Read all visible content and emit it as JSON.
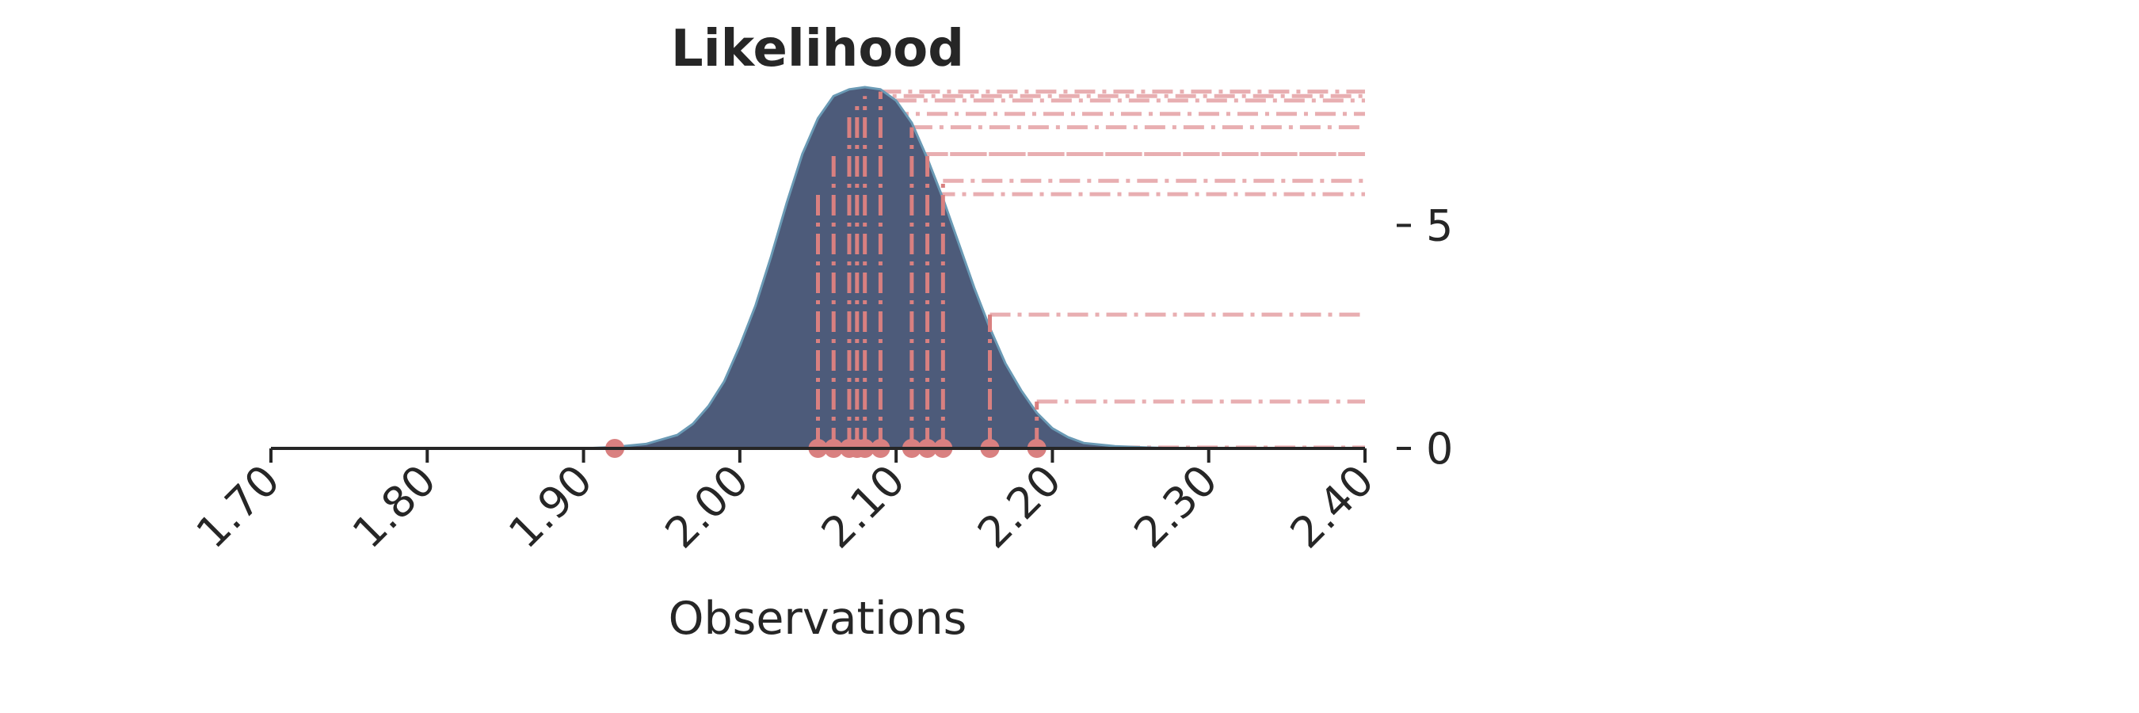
{
  "chart_data": {
    "type": "area",
    "title": "Likelihood",
    "xlabel": "Observations",
    "ylabel": "",
    "xlim": [
      1.7,
      2.4
    ],
    "ylim": [
      0,
      8.1
    ],
    "x_ticks": [
      1.7,
      1.8,
      1.9,
      2.0,
      2.1,
      2.2,
      2.3,
      2.4
    ],
    "x_tick_labels": [
      "1.70",
      "1.80",
      "1.90",
      "2.00",
      "2.10",
      "2.20",
      "2.30",
      "2.40"
    ],
    "y_ticks": [
      0,
      5
    ],
    "y_tick_labels": [
      "0",
      "5"
    ],
    "y_axis_side": "right",
    "grid": false,
    "likelihood_curve": {
      "x": [
        1.9,
        1.92,
        1.94,
        1.96,
        1.97,
        1.98,
        1.99,
        2.0,
        2.01,
        2.02,
        2.03,
        2.04,
        2.05,
        2.06,
        2.07,
        2.08,
        2.09,
        2.1,
        2.11,
        2.12,
        2.13,
        2.14,
        2.15,
        2.16,
        2.17,
        2.18,
        2.19,
        2.2,
        2.21,
        2.22,
        2.24,
        2.26,
        2.28,
        2.32,
        2.4
      ],
      "y": [
        0.0,
        0.03,
        0.1,
        0.3,
        0.55,
        0.95,
        1.5,
        2.3,
        3.2,
        4.3,
        5.5,
        6.6,
        7.4,
        7.9,
        8.05,
        8.1,
        8.05,
        7.8,
        7.3,
        6.5,
        5.6,
        4.6,
        3.6,
        2.7,
        1.9,
        1.3,
        0.8,
        0.45,
        0.25,
        0.12,
        0.05,
        0.02,
        0.0,
        0.0,
        0.0
      ]
    },
    "observations": [
      {
        "x": 1.92,
        "y": 0.02
      },
      {
        "x": 2.05,
        "y": 5.7
      },
      {
        "x": 2.06,
        "y": 6.6
      },
      {
        "x": 2.07,
        "y": 7.5
      },
      {
        "x": 2.075,
        "y": 7.8
      },
      {
        "x": 2.08,
        "y": 7.9
      },
      {
        "x": 2.09,
        "y": 8.0
      },
      {
        "x": 2.11,
        "y": 7.2
      },
      {
        "x": 2.12,
        "y": 6.6
      },
      {
        "x": 2.13,
        "y": 6.0
      },
      {
        "x": 2.16,
        "y": 3.0
      },
      {
        "x": 2.19,
        "y": 1.05
      }
    ],
    "colors": {
      "area_fill": "#4d5b7a",
      "area_edge": "#6a9ab5",
      "observation": "#d98080",
      "horizontal_guides": "#e8aeb1",
      "axis": "#262626"
    }
  }
}
